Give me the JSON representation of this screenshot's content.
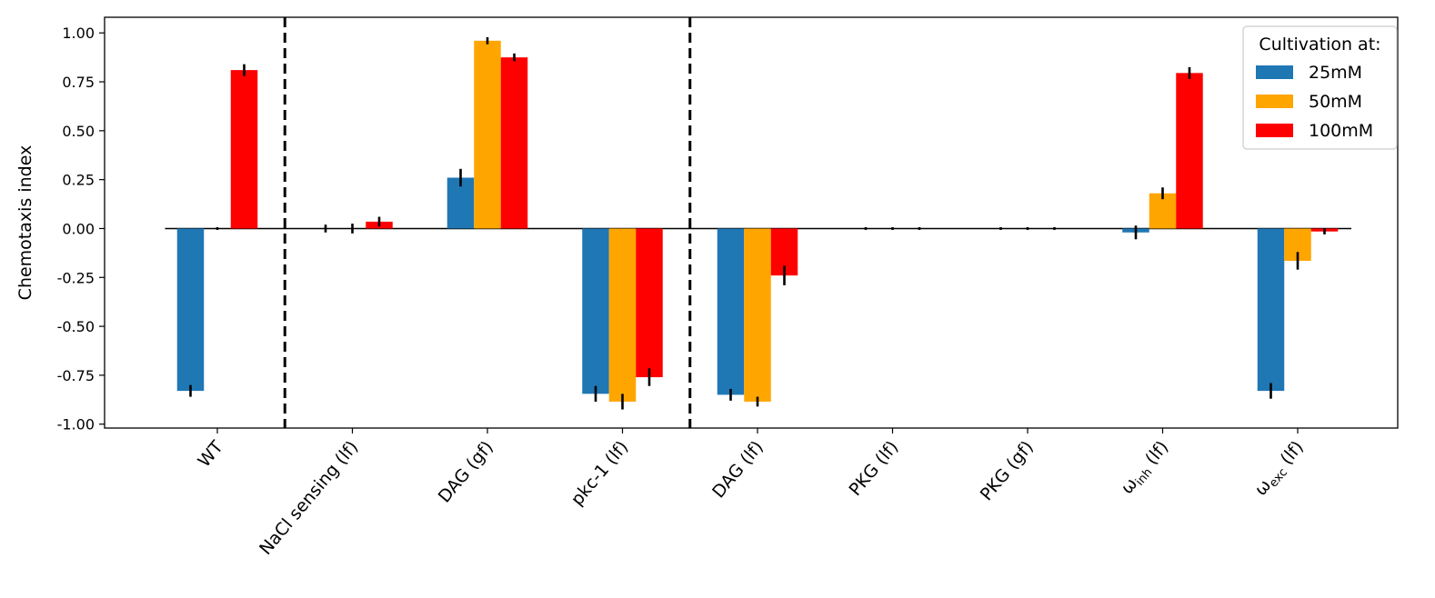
{
  "chart_data": {
    "type": "bar",
    "ylabel": "Chemotaxis index",
    "ylim": [
      -1.02,
      1.08
    ],
    "yticks": [
      "1.00",
      "0.75",
      "0.50",
      "0.25",
      "0.00",
      "-0.25",
      "-0.50",
      "-0.75",
      "-1.00"
    ],
    "ytick_values": [
      1.0,
      0.75,
      0.5,
      0.25,
      0.0,
      -0.25,
      -0.5,
      -0.75,
      -1.0
    ],
    "categories": [
      {
        "base": "WT",
        "sub": ""
      },
      {
        "base": "NaCl sensing (lf)",
        "sub": ""
      },
      {
        "base": "DAG (gf)",
        "sub": ""
      },
      {
        "base": "pkc-1 (lf)",
        "sub": ""
      },
      {
        "base": "DAG (lf)",
        "sub": ""
      },
      {
        "base": "PKG (lf)",
        "sub": ""
      },
      {
        "base": "PKG (gf)",
        "sub": ""
      },
      {
        "base": "ω",
        "sub": "inh",
        "suffix": " (lf)"
      },
      {
        "base": "ω",
        "sub": "exc",
        "suffix": " (lf)"
      }
    ],
    "series": [
      {
        "name": "25mM",
        "color": "#1f77b4",
        "values": [
          -0.83,
          0.0,
          0.26,
          -0.845,
          -0.85,
          0.0,
          0.0,
          -0.02,
          -0.83
        ],
        "errors": [
          0.03,
          0.02,
          0.045,
          0.04,
          0.03,
          0.0,
          0.0,
          0.035,
          0.04
        ]
      },
      {
        "name": "50mM",
        "color": "#ffa500",
        "values": [
          0.0,
          0.0,
          0.96,
          -0.885,
          -0.885,
          0.0,
          0.0,
          0.18,
          -0.165
        ],
        "errors": [
          0.0,
          0.025,
          0.018,
          0.04,
          0.025,
          0.0,
          0.0,
          0.03,
          0.045
        ]
      },
      {
        "name": "100mM",
        "color": "#ff0000",
        "values": [
          0.81,
          0.035,
          0.875,
          -0.76,
          -0.24,
          0.0,
          0.0,
          0.795,
          -0.015
        ],
        "errors": [
          0.03,
          0.025,
          0.02,
          0.045,
          0.05,
          0.0,
          0.0,
          0.03,
          0.015
        ]
      }
    ],
    "separators_after": [
      0,
      3
    ],
    "zero_line": true,
    "legend": {
      "title": "Cultivation at:",
      "placement": "top-right"
    }
  }
}
